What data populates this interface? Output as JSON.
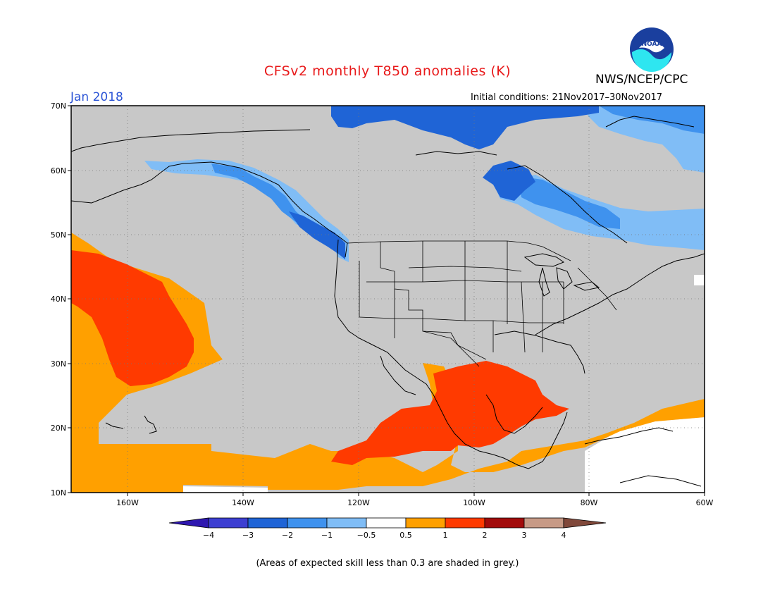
{
  "title": "CFSv2 monthly T850 anomalies (K)",
  "month": "Jan 2018",
  "initial_conditions": "Initial conditions: 21Nov2017–30Nov2017",
  "agency": "NWS/NCEP/CPC",
  "logo_text": "NOAA",
  "lat_labels": [
    "70N",
    "60N",
    "50N",
    "40N",
    "30N",
    "20N",
    "10N"
  ],
  "lon_labels": [
    "160W",
    "140W",
    "120W",
    "100W",
    "80W",
    "60W"
  ],
  "colorbar": {
    "ticks": [
      "−4",
      "−3",
      "−2",
      "−1",
      "−0.5",
      "0.5",
      "1",
      "2",
      "3",
      "4"
    ],
    "colors": [
      "#2e17b0",
      "#3d3fd2",
      "#1f64d6",
      "#3f92ee",
      "#80bdf6",
      "#ffffff",
      "#ffa000",
      "#ff3a00",
      "#a20b0b",
      "#c79a86",
      "#80483a"
    ]
  },
  "footnote": "(Areas of expected skill less than 0.3 are shaded in grey.)",
  "colors": {
    "grey_low_skill": "#c8c8c8",
    "title": "#e8191a",
    "month": "#2b54d6"
  }
}
